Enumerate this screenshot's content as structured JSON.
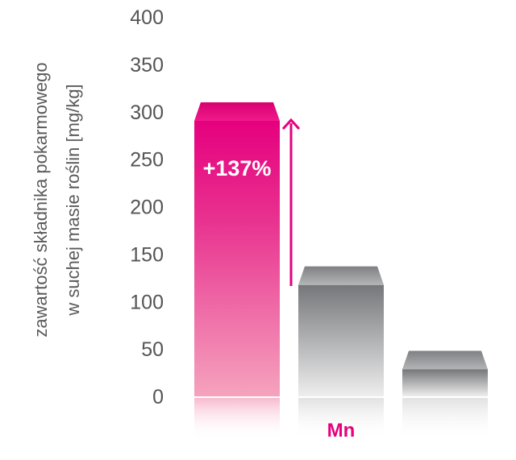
{
  "chart_data": {
    "type": "bar",
    "title": "",
    "xlabel": "",
    "ylabel_lines": [
      "zawartość składnika pokarmowego",
      "w suchej masie roślin [mg/kg]"
    ],
    "ylim": [
      0,
      400
    ],
    "yticks": [
      "0",
      "50",
      "100",
      "150",
      "200",
      "250",
      "300",
      "350",
      "400"
    ],
    "category_label": "Mn",
    "series": [
      {
        "values": [
          310,
          137,
          48
        ]
      }
    ],
    "annotation": "+137%",
    "grid": false,
    "legend": "none",
    "colors": {
      "highlight_top": "#e6007e",
      "highlight_bottom": "#f5a3bd",
      "gray_top": "#7a7a7c",
      "gray_bottom": "#eeeeee",
      "arrow": "#e6007e",
      "category": "#e6007e",
      "tick_text": "#555555"
    }
  }
}
